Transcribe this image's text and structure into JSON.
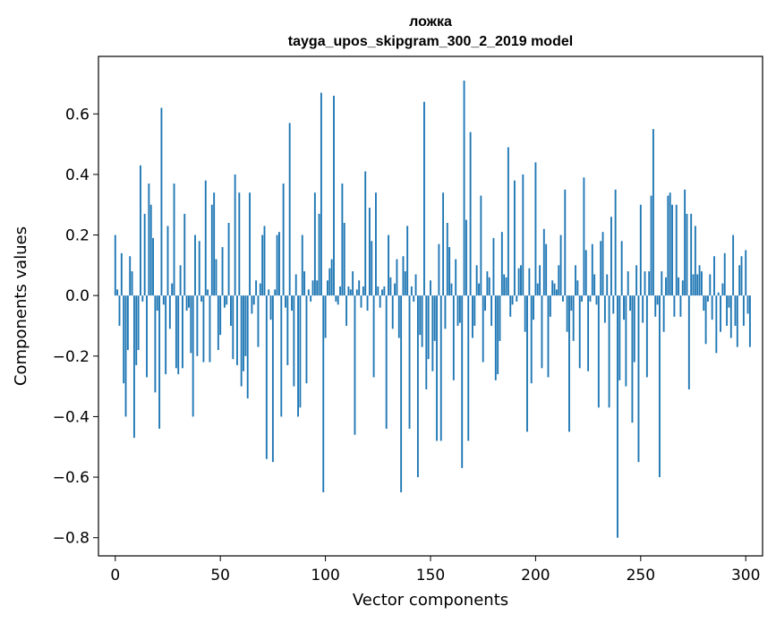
{
  "chart_data": {
    "type": "bar",
    "title": "ложка",
    "subtitle": "tayga_upos_skipgram_300_2_2019 model",
    "xlabel": "Vector components",
    "ylabel": "Components values",
    "xlim": [
      -8,
      308
    ],
    "ylim": [
      -0.86,
      0.79
    ],
    "xticks": [
      0,
      50,
      100,
      150,
      200,
      250,
      300
    ],
    "xtick_labels": [
      "0",
      "50",
      "100",
      "150",
      "200",
      "250",
      "300"
    ],
    "yticks": [
      -0.8,
      -0.6,
      -0.4,
      -0.2,
      0.0,
      0.2,
      0.4,
      0.6
    ],
    "ytick_labels": [
      "−0.8",
      "−0.6",
      "−0.4",
      "−0.2",
      "0.0",
      "0.2",
      "0.4",
      "0.6"
    ],
    "grid": false,
    "color": "#1f77b4",
    "values": [
      0.2,
      0.02,
      -0.1,
      0.14,
      -0.29,
      -0.4,
      -0.18,
      0.13,
      0.08,
      -0.47,
      -0.23,
      -0.18,
      0.43,
      -0.02,
      0.27,
      -0.27,
      0.37,
      0.3,
      0.19,
      -0.32,
      -0.05,
      -0.44,
      0.62,
      -0.03,
      -0.26,
      0.23,
      -0.11,
      0.04,
      0.37,
      -0.24,
      -0.26,
      0.1,
      -0.24,
      0.27,
      -0.05,
      -0.04,
      -0.19,
      -0.4,
      0.2,
      -0.2,
      0.18,
      -0.02,
      -0.22,
      0.38,
      0.02,
      -0.22,
      0.3,
      0.34,
      0.12,
      -0.18,
      -0.13,
      0.16,
      -0.04,
      -0.03,
      0.24,
      -0.1,
      -0.21,
      0.4,
      -0.23,
      0.34,
      -0.3,
      -0.25,
      -0.2,
      -0.34,
      0.34,
      -0.06,
      -0.03,
      0.05,
      -0.17,
      0.04,
      0.2,
      0.23,
      -0.54,
      0.02,
      -0.08,
      -0.55,
      0.02,
      0.2,
      0.21,
      -0.4,
      0.37,
      -0.04,
      -0.23,
      0.57,
      -0.05,
      -0.3,
      0.07,
      -0.4,
      -0.37,
      0.2,
      0.08,
      -0.29,
      0.02,
      -0.02,
      0.05,
      0.34,
      0.05,
      0.27,
      0.67,
      -0.65,
      -0.14,
      0.05,
      0.09,
      0.12,
      0.66,
      -0.02,
      -0.03,
      0.03,
      0.37,
      0.24,
      -0.1,
      0.03,
      0.02,
      0.08,
      -0.46,
      0.02,
      0.05,
      -0.04,
      0.03,
      0.41,
      -0.05,
      0.29,
      0.18,
      -0.27,
      0.34,
      0.03,
      -0.04,
      0.02,
      0.03,
      -0.44,
      0.2,
      0.06,
      -0.11,
      0.04,
      0.12,
      -0.14,
      -0.65,
      0.13,
      0.08,
      0.23,
      -0.44,
      0.03,
      -0.02,
      0.07,
      -0.6,
      -0.13,
      -0.17,
      0.64,
      -0.31,
      -0.21,
      0.05,
      -0.25,
      -0.15,
      -0.48,
      0.17,
      -0.48,
      0.34,
      -0.11,
      0.24,
      0.16,
      0.04,
      -0.28,
      0.12,
      -0.1,
      -0.09,
      -0.57,
      0.71,
      0.25,
      -0.48,
      0.54,
      -0.14,
      -0.1,
      0.1,
      0.04,
      0.33,
      -0.22,
      -0.05,
      0.08,
      0.06,
      -0.1,
      0.19,
      -0.28,
      -0.26,
      -0.15,
      0.21,
      0.07,
      0.06,
      0.49,
      -0.07,
      -0.03,
      0.38,
      -0.02,
      0.09,
      0.1,
      0.4,
      -0.12,
      -0.45,
      0.09,
      -0.29,
      -0.08,
      0.44,
      0.04,
      0.1,
      -0.24,
      0.22,
      0.17,
      -0.27,
      -0.07,
      0.05,
      0.04,
      0.02,
      0.1,
      0.2,
      -0.02,
      0.35,
      -0.12,
      -0.45,
      -0.05,
      -0.15,
      0.1,
      0.05,
      -0.24,
      -0.02,
      0.39,
      0.15,
      -0.25,
      -0.02,
      0.17,
      0.07,
      -0.03,
      -0.37,
      0.18,
      0.21,
      -0.09,
      0.07,
      -0.37,
      0.26,
      -0.06,
      0.35,
      -0.8,
      -0.28,
      0.18,
      -0.08,
      -0.3,
      0.08,
      -0.05,
      -0.42,
      -0.22,
      0.1,
      -0.55,
      0.3,
      -0.09,
      0.08,
      -0.27,
      0.08,
      0.33,
      0.55,
      -0.07,
      -0.03,
      -0.6,
      0.08,
      -0.12,
      0.06,
      0.33,
      0.34,
      0.3,
      -0.07,
      0.3,
      0.06,
      -0.07,
      0.05,
      0.35,
      0.27,
      -0.31,
      0.27,
      0.07,
      0.23,
      0.07,
      0.1,
      0.08,
      -0.05,
      -0.16,
      -0.02,
      0.07,
      -0.08,
      0.13,
      -0.19,
      0.01,
      -0.12,
      0.04,
      0.14,
      -0.1,
      -0.04,
      -0.14,
      0.2,
      -0.1,
      -0.17,
      0.1,
      0.13,
      -0.1,
      0.15,
      -0.06,
      -0.17
    ]
  }
}
